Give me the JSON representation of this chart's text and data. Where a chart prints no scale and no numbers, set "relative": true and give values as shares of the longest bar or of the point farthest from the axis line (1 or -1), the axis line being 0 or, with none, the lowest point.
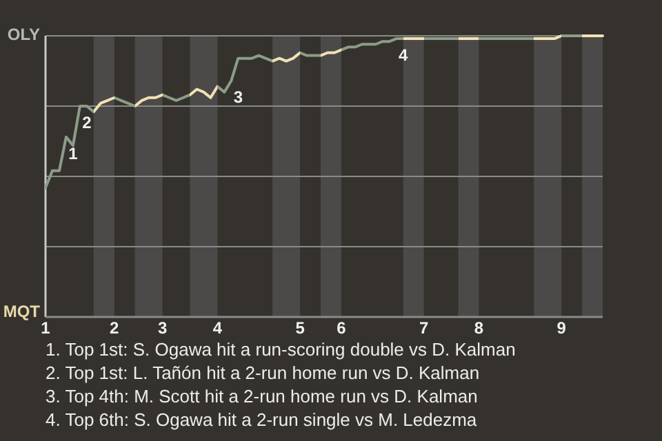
{
  "chart_data": {
    "type": "line",
    "relative": true,
    "marker": "none",
    "line_style": "solid",
    "categories": [
      "1",
      null,
      null,
      null,
      null,
      null,
      null,
      null,
      null,
      null,
      "2",
      null,
      null,
      null,
      null,
      null,
      null,
      "3",
      null,
      null,
      null,
      null,
      null,
      null,
      null,
      "4",
      null,
      null,
      null,
      null,
      null,
      null,
      null,
      null,
      null,
      null,
      null,
      "5",
      null,
      null,
      null,
      null,
      null,
      "6",
      null,
      null,
      null,
      null,
      null,
      null,
      null,
      null,
      null,
      null,
      null,
      "7",
      null,
      null,
      null,
      null,
      null,
      null,
      null,
      "8",
      null,
      null,
      null,
      null,
      null,
      null,
      null,
      null,
      null,
      null,
      null,
      "9",
      null,
      null,
      null,
      null,
      null,
      null
    ],
    "series": [
      {
        "color": "#8c9c88",
        "values": [
          0.46,
          0.52,
          0.52,
          0.64,
          0.61,
          0.75,
          0.75,
          0.73,
          0.76,
          0.77,
          0.78,
          0.77,
          0.76,
          0.75,
          0.77,
          0.78,
          0.78,
          0.79,
          0.78,
          0.77,
          0.78,
          0.79,
          0.81,
          0.8,
          0.78,
          0.82,
          0.8,
          0.84,
          0.92,
          0.92,
          0.92,
          0.93,
          0.92,
          0.91,
          0.92,
          0.91,
          0.92,
          0.94,
          0.93,
          0.93,
          0.93,
          0.94,
          0.94,
          0.95,
          0.96,
          0.96,
          0.97,
          0.97,
          0.97,
          0.98,
          0.98,
          0.99,
          0.99,
          0.99,
          0.99,
          0.99,
          0.99,
          0.99,
          0.99,
          0.99,
          0.99,
          0.99,
          0.99,
          0.99,
          0.99,
          0.99,
          0.99,
          0.99,
          0.99,
          0.99,
          0.99,
          0.99,
          0.99,
          0.99,
          0.99,
          1,
          1,
          1,
          1,
          1,
          1,
          1
        ],
        "colors": [
          "#8c9c88",
          "#8c9c88",
          "#8c9c88",
          "#8c9c88",
          "#8c9c88",
          "#8c9c88",
          "#8c9c88",
          "#8c9c88",
          "#f2e2b4",
          "#f2e2b4",
          "#f2e2b4",
          "#8c9c88",
          "#8c9c88",
          "#8c9c88",
          "#f2e2b4",
          "#f2e2b4",
          "#f2e2b4",
          "#f2e2b4",
          "#8c9c88",
          "#8c9c88",
          "#8c9c88",
          "#8c9c88",
          "#f2e2b4",
          "#f2e2b4",
          "#f2e2b4",
          "#f2e2b4",
          "#8c9c88",
          "#8c9c88",
          "#8c9c88",
          "#8c9c88",
          "#8c9c88",
          "#8c9c88",
          "#8c9c88",
          "#8c9c88",
          "#f2e2b4",
          "#f2e2b4",
          "#f2e2b4",
          "#f2e2b4",
          "#8c9c88",
          "#8c9c88",
          "#8c9c88",
          "#f2e2b4",
          "#f2e2b4",
          "#f2e2b4",
          "#8c9c88",
          "#8c9c88",
          "#8c9c88",
          "#8c9c88",
          "#8c9c88",
          "#8c9c88",
          "#8c9c88",
          "#8c9c88",
          "#8c9c88",
          "#f2e2b4",
          "#f2e2b4",
          "#f2e2b4",
          "#8c9c88",
          "#8c9c88",
          "#8c9c88",
          "#8c9c88",
          "#8c9c88",
          "#f2e2b4",
          "#f2e2b4",
          "#f2e2b4",
          "#8c9c88",
          "#8c9c88",
          "#8c9c88",
          "#8c9c88",
          "#8c9c88",
          "#8c9c88",
          "#8c9c88",
          "#8c9c88",
          "#f2e2b4",
          "#f2e2b4",
          "#f2e2b4",
          "#f2e2b4",
          "#8c9c88",
          "#8c9c88",
          "#8c9c88",
          "#f2e2b4",
          "#f2e2b4",
          "#f2e2b4"
        ]
      }
    ],
    "ref_lines": [
      {
        "axis": "y",
        "value": 1,
        "label": "OLY"
      },
      {
        "axis": "y",
        "value": 0.75
      },
      {
        "axis": "y",
        "value": 0.5
      },
      {
        "axis": "y",
        "value": 0.25
      }
    ],
    "annotations": [
      "MQT",
      {
        "text": "1",
        "y": 0.64
      },
      {
        "text": "2",
        "y": 0.75
      },
      {
        "text": "3",
        "y": 0.84
      },
      {
        "text": "4",
        "y": 0.99
      },
      "1. Top 1st: S. Ogawa hit a run-scoring double vs D. Kalman",
      "2. Top 1st: L. Tañón hit a 2-run home run vs D. Kalman",
      "3. Top 4th: M. Scott hit a 2-run home run vs D. Kalman",
      "4. Top 6th: S. Ogawa hit a 2-run single vs M. Ledezma"
    ]
  }
}
